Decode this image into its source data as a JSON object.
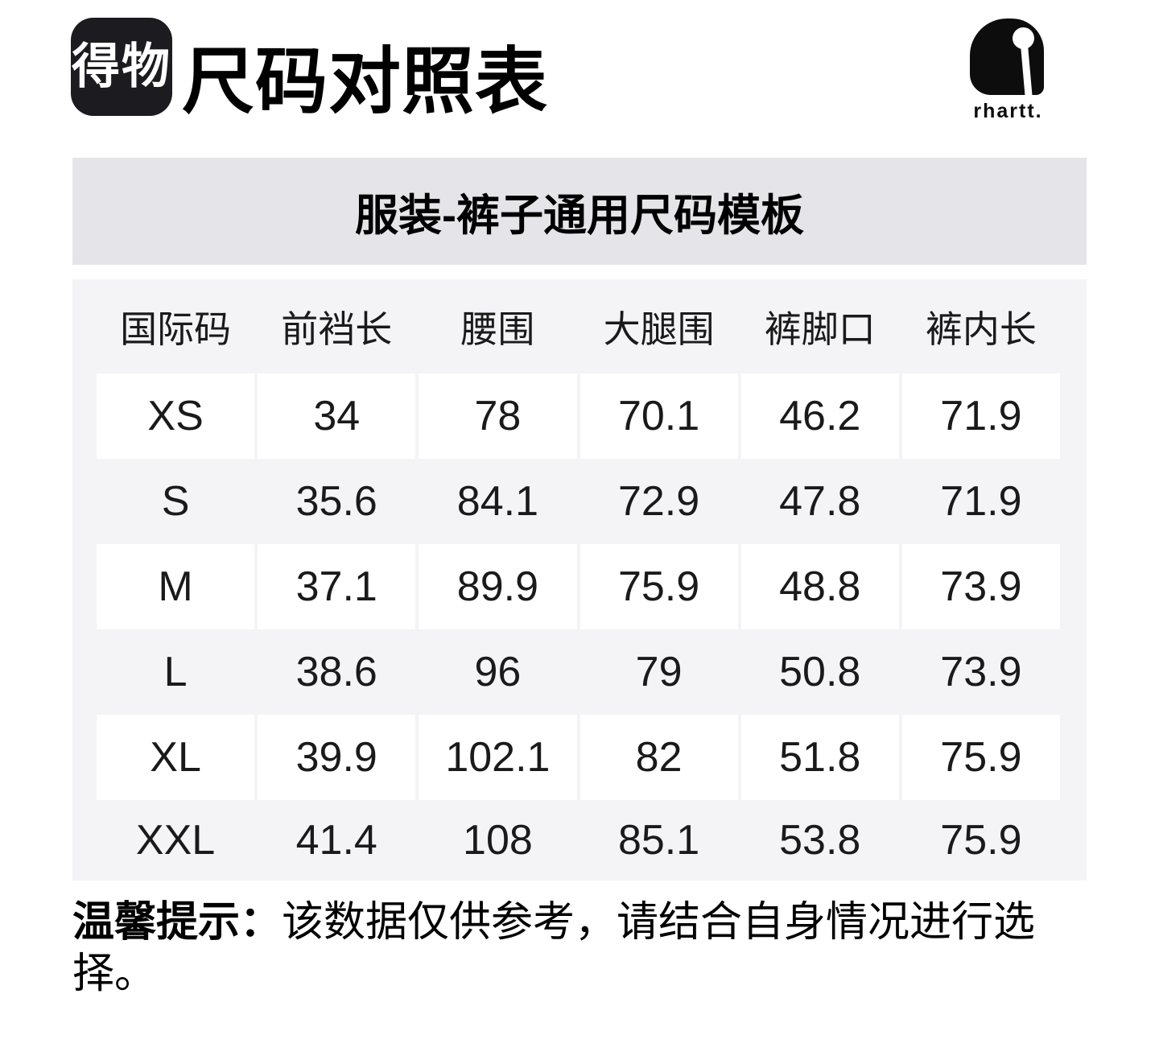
{
  "page": {
    "logo_text": "得物",
    "title": "尺码对照表",
    "brand": {
      "icon": "carhartt-c",
      "wordmark": "rhartt."
    },
    "banner_title": "服装-裤子通用尺码模板",
    "table": {
      "columns": [
        "国际码",
        "前裆长",
        "腰围",
        "大腿围",
        "裤脚口",
        "裤内长"
      ],
      "rows": [
        {
          "size": "XS",
          "values": [
            "34",
            "78",
            "70.1",
            "46.2",
            "71.9"
          ]
        },
        {
          "size": "S",
          "values": [
            "35.6",
            "84.1",
            "72.9",
            "47.8",
            "71.9"
          ]
        },
        {
          "size": "M",
          "values": [
            "37.1",
            "89.9",
            "75.9",
            "48.8",
            "73.9"
          ]
        },
        {
          "size": "L",
          "values": [
            "38.6",
            "96",
            "79",
            "50.8",
            "73.9"
          ]
        },
        {
          "size": "XL",
          "values": [
            "39.9",
            "102.1",
            "82",
            "51.8",
            "75.9"
          ]
        },
        {
          "size": "XXL",
          "values": [
            "41.4",
            "108",
            "85.1",
            "53.8",
            "75.9"
          ]
        }
      ]
    },
    "notice": {
      "label": "温馨提示：",
      "text": "该数据仅供参考，请结合自身情况进行选择。"
    },
    "colors": {
      "banner_bg": "#e5e4e9",
      "table_bg": "#f4f4f6",
      "row_highlight_bg": "#ffffff",
      "logo_bg": "#1b1b20",
      "brand_black": "#0d0d0d",
      "text": "#111111"
    }
  }
}
